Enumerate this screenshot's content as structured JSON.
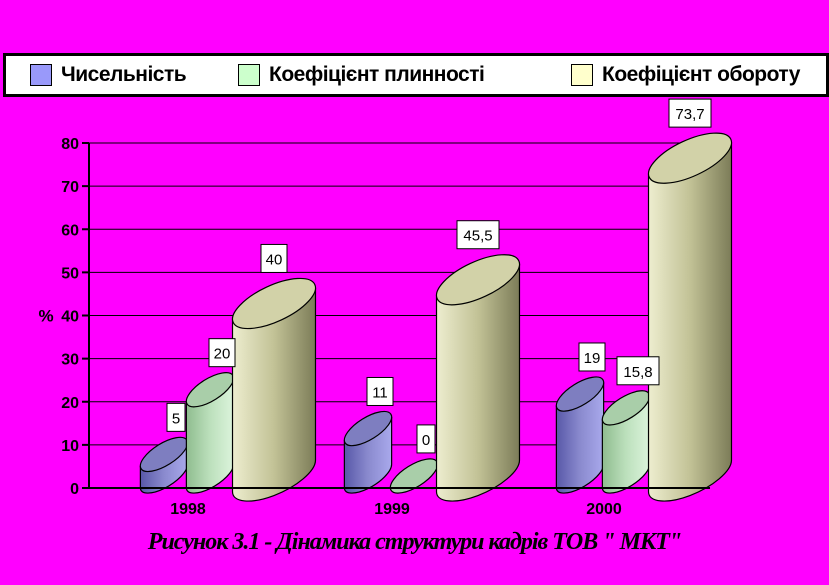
{
  "background_color": "#FF00FF",
  "legend": {
    "position": "top",
    "items": [
      {
        "label": "Чисельність",
        "swatch_color": "#9999FA"
      },
      {
        "label": "Коефіцієнт плинності",
        "swatch_color": "#CCFFCC"
      },
      {
        "label": "Коефіцієнт обороту",
        "swatch_color": "#FFFFCC"
      }
    ]
  },
  "chart_data": {
    "type": "bar",
    "subtype": "3d-cylinder",
    "categories": [
      "1998",
      "1999",
      "2000"
    ],
    "series": [
      {
        "name": "Чисельність",
        "values": [
          5,
          11,
          19
        ],
        "labels": [
          "5",
          "11",
          "19"
        ],
        "colors": {
          "gradient": [
            "#5858A8",
            "#8A8ACE",
            "#A9A9EC"
          ],
          "top": "#7E7EC0"
        }
      },
      {
        "name": "Коефіцієнт плинності",
        "values": [
          20,
          0,
          15.8
        ],
        "labels": [
          "20",
          "0",
          "15,8"
        ],
        "colors": {
          "gradient": [
            "#8FBC8F",
            "#BCE0BC",
            "#DCF4DC"
          ],
          "top": "#A9CEA9"
        }
      },
      {
        "name": "Коефіцієнт обороту",
        "values": [
          40,
          45.5,
          73.7
        ],
        "labels": [
          "40",
          "45,5",
          "73,7"
        ],
        "colors": {
          "gradient": [
            "#EDEDCF",
            "#C2C296",
            "#7C7C58"
          ],
          "top": "#D2D2A8"
        }
      }
    ],
    "ylabel": "%",
    "ylim": [
      0,
      80
    ],
    "ytick_step": 10,
    "grid": true,
    "axis_color": "#000000",
    "data_label_box": {
      "fill": "#FFFFFF",
      "border": "#000000"
    },
    "legend_position": "top"
  },
  "caption": "Рисунок 3.1 - Дінамика структури кадрів ТОВ \" МКТ\""
}
